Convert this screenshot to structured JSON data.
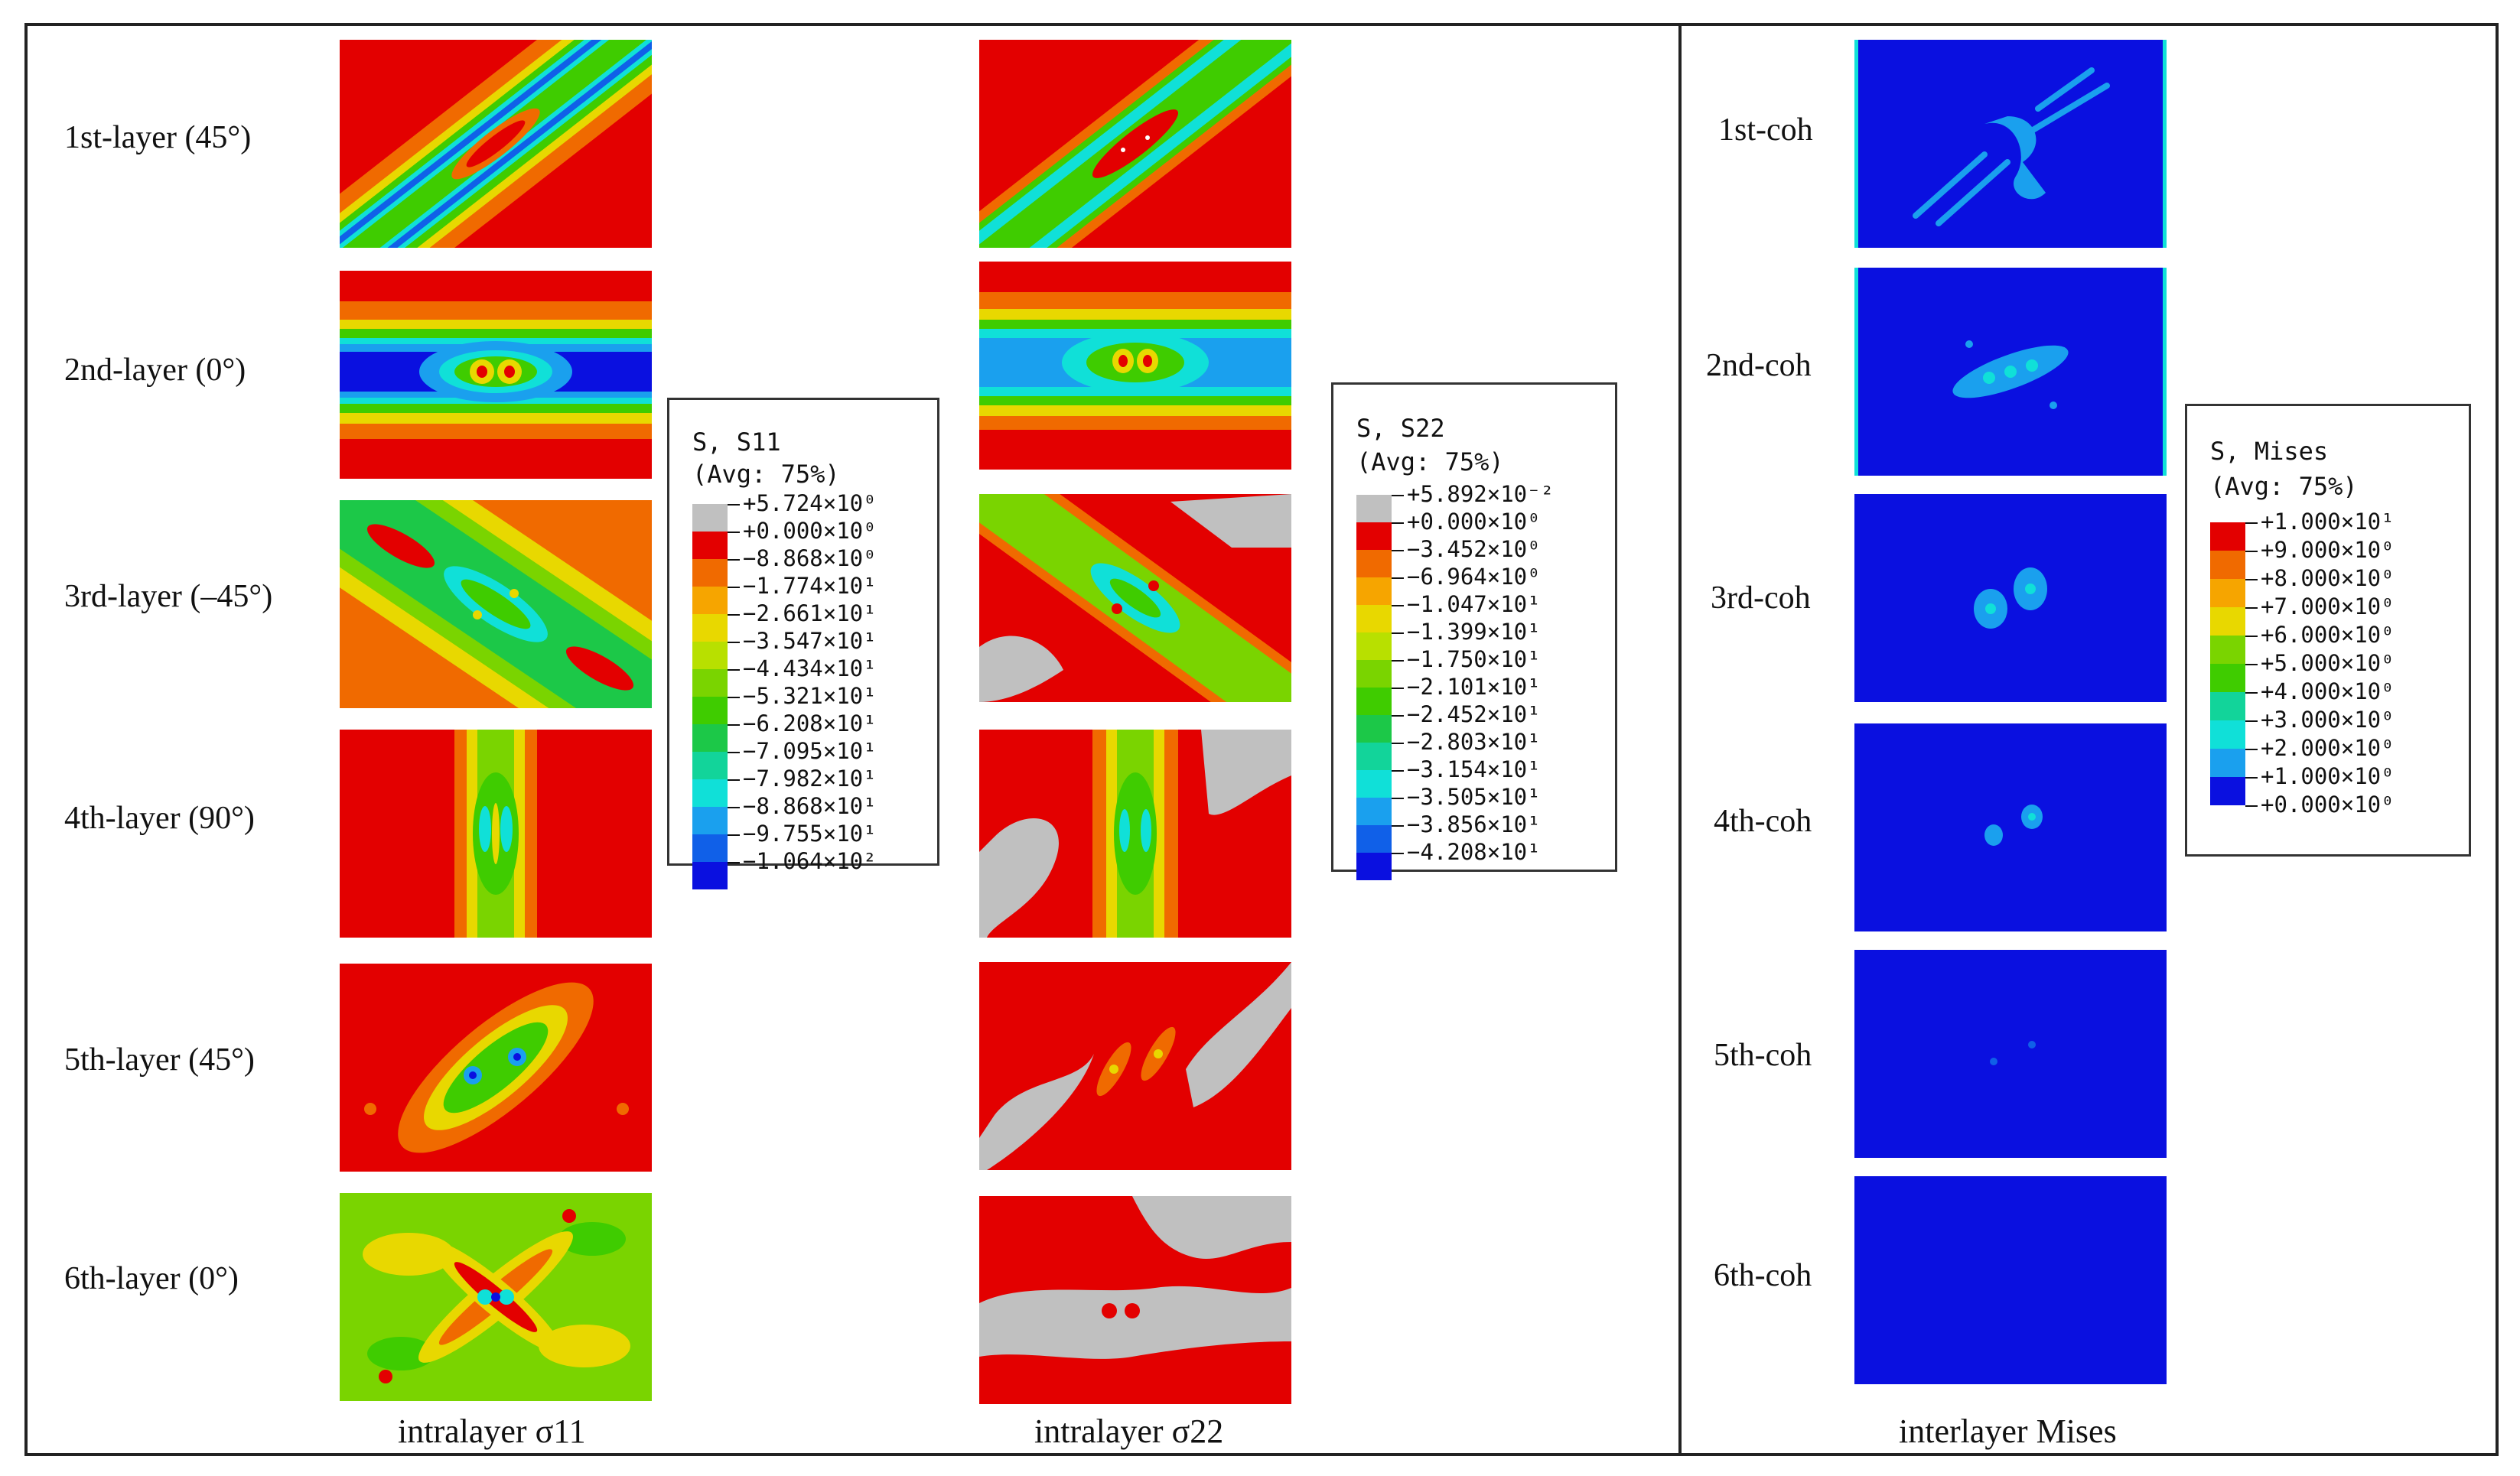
{
  "rows": {
    "layers": [
      "1st-layer (45°)",
      "2nd-layer (0°)",
      "3rd-layer (–45°)",
      "4th-layer (90°)",
      "5th-layer (45°)",
      "6th-layer (0°)"
    ],
    "coh": [
      "1st-coh",
      "2nd-coh",
      "3rd-coh",
      "4th-coh",
      "5th-coh",
      "6th-coh"
    ]
  },
  "columns": {
    "s11": "intralayer σ11",
    "s22": "intralayer σ22",
    "mises": "interlayer Mises"
  },
  "legends": {
    "s11": {
      "title1": "S, S11",
      "title2": "(Avg: 75%)",
      "values": [
        "+5.724×10⁰",
        "+0.000×10⁰",
        "−8.868×10⁰",
        "−1.774×10¹",
        "−2.661×10¹",
        "−3.547×10¹",
        "−4.434×10¹",
        "−5.321×10¹",
        "−6.208×10¹",
        "−7.095×10¹",
        "−7.982×10¹",
        "−8.868×10¹",
        "−9.755×10¹",
        "−1.064×10²"
      ],
      "colors": [
        "#c0c0c0",
        "#e30000",
        "#f06a00",
        "#f6a500",
        "#e8d800",
        "#b8e000",
        "#7ad400",
        "#3fcc00",
        "#1cc848",
        "#12d49a",
        "#10e0d8",
        "#1aa0ee",
        "#1060e8",
        "#0a10e0"
      ]
    },
    "s22": {
      "title1": "S, S22",
      "title2": "(Avg: 75%)",
      "values": [
        "+5.892×10⁻²",
        "+0.000×10⁰",
        "−3.452×10⁰",
        "−6.964×10⁰",
        "−1.047×10¹",
        "−1.399×10¹",
        "−1.750×10¹",
        "−2.101×10¹",
        "−2.452×10¹",
        "−2.803×10¹",
        "−3.154×10¹",
        "−3.505×10¹",
        "−3.856×10¹",
        "−4.208×10¹"
      ],
      "colors": [
        "#c0c0c0",
        "#e30000",
        "#f06a00",
        "#f6a500",
        "#e8d800",
        "#b8e000",
        "#7ad400",
        "#3fcc00",
        "#1cc848",
        "#12d49a",
        "#10e0d8",
        "#1aa0ee",
        "#1060e8",
        "#0a10e0"
      ]
    },
    "mises": {
      "title1": "S, Mises",
      "title2": "(Avg: 75%)",
      "values": [
        "+1.000×10¹",
        "+9.000×10⁰",
        "+8.000×10⁰",
        "+7.000×10⁰",
        "+6.000×10⁰",
        "+5.000×10⁰",
        "+4.000×10⁰",
        "+3.000×10⁰",
        "+2.000×10⁰",
        "+1.000×10⁰",
        "+0.000×10⁰"
      ],
      "colors": [
        "#e30000",
        "#f06a00",
        "#f6a500",
        "#e8d800",
        "#7ad400",
        "#3fcc00",
        "#12d49a",
        "#10e0d8",
        "#1aa0ee",
        "#0a10e0"
      ]
    }
  }
}
